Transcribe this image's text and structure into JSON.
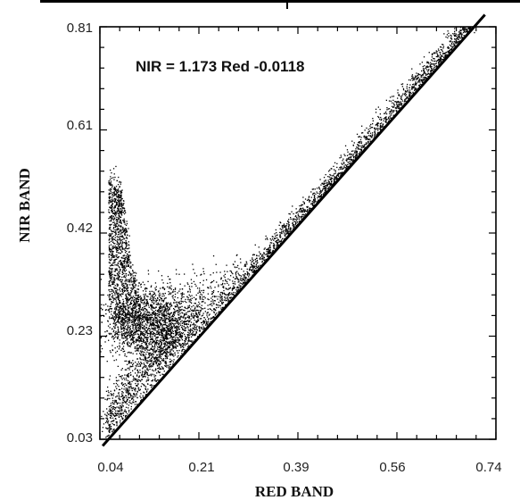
{
  "chart_data": {
    "type": "scatter",
    "title": "",
    "xlabel": "RED BAND",
    "ylabel": "NIR BAND",
    "xlim": [
      0.02,
      0.74
    ],
    "ylim": [
      0.03,
      0.81
    ],
    "x_ticks": [
      "0.04",
      "0.21",
      "0.39",
      "0.56",
      "0.74"
    ],
    "y_ticks": [
      "0.81",
      "0.61",
      "0.42",
      "0.23",
      "0.03"
    ],
    "annotation": "NIR = 1.173 Red -0.0118",
    "grid": false,
    "soil_line": {
      "slope": 1.173,
      "intercept": -0.0118,
      "x": [
        0.025,
        0.72
      ]
    },
    "series": [
      {
        "cluster_points": [
          [
            0.05,
            0.52
          ],
          [
            0.05,
            0.4
          ],
          [
            0.07,
            0.36
          ],
          [
            0.1,
            0.3
          ],
          [
            0.12,
            0.27
          ],
          [
            0.15,
            0.24
          ],
          [
            0.18,
            0.28
          ],
          [
            0.22,
            0.32
          ],
          [
            0.3,
            0.38
          ],
          [
            0.4,
            0.48
          ],
          [
            0.5,
            0.58
          ],
          [
            0.6,
            0.7
          ],
          [
            0.7,
            0.8
          ],
          [
            0.05,
            0.08
          ],
          [
            0.1,
            0.15
          ],
          [
            0.15,
            0.2
          ]
        ]
      }
    ]
  }
}
